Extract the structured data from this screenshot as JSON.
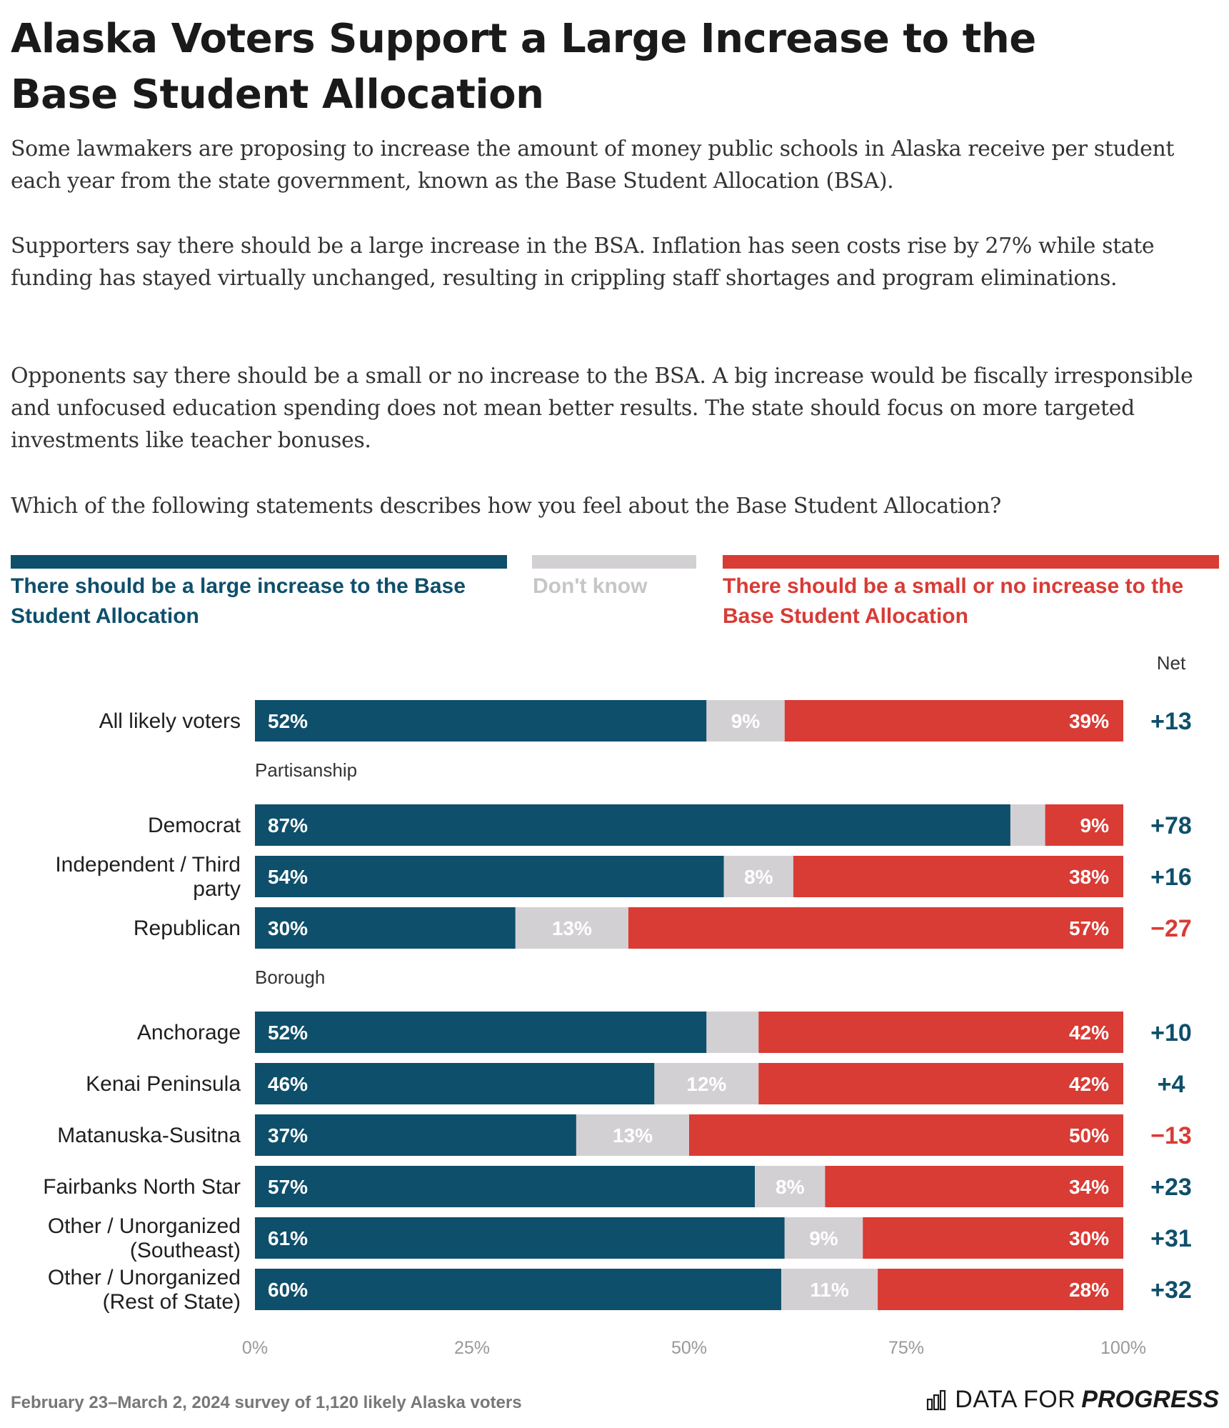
{
  "title": "Alaska Voters Support a Large Increase to the Base Student Allocation",
  "paragraphs": [
    "Some lawmakers are proposing to increase the amount of money public schools in Alaska receive per student each year from the state government, known as the Base Student Allocation (BSA).",
    "Supporters say there should be a large increase in the BSA. Inflation has seen costs rise by 27% while state funding has stayed virtually unchanged, resulting in crippling staff shortages and program eliminations.",
    "Opponents say there should be a small or no increase to the BSA. A big increase would be fiscally irresponsible and unfocused education spending does not mean better results. The state should focus on more targeted investments like teacher bonuses.",
    "Which of the following statements describes how you feel about the Base Student Allocation?"
  ],
  "legend": {
    "large": "There should be a large increase to the Base Student Allocation",
    "dontknow": "Don't know",
    "small": "There should be a small or no increase to the Base Student Allocation"
  },
  "colors": {
    "large": "#0e4f6b",
    "dontknow": "#d3d0d3",
    "small": "#d93b35",
    "dontknow_text": "#c8c5c8",
    "pos_net": "#0e4f6b",
    "neg_net": "#d93b35"
  },
  "chart_data": {
    "type": "bar",
    "stacked": true,
    "orientation": "horizontal",
    "net_header": "Net",
    "groups": [
      {
        "label": "",
        "rows": [
          {
            "label": "All likely voters",
            "large": 52,
            "dontknow": 9,
            "small": 39,
            "net": "+13",
            "labels": [
              "52%",
              "9%",
              "39%"
            ]
          }
        ]
      },
      {
        "label": "Partisanship",
        "rows": [
          {
            "label": "Democrat",
            "large": 87,
            "dontknow": 4,
            "small": 9,
            "net": "+78",
            "labels": [
              "87%",
              "",
              "9%"
            ]
          },
          {
            "label": "Independent / Third party",
            "large": 54,
            "dontknow": 8,
            "small": 38,
            "net": "+16",
            "labels": [
              "54%",
              "8%",
              "38%"
            ]
          },
          {
            "label": "Republican",
            "large": 30,
            "dontknow": 13,
            "small": 57,
            "net": "−27",
            "labels": [
              "30%",
              "13%",
              "57%"
            ]
          }
        ]
      },
      {
        "label": "Borough",
        "rows": [
          {
            "label": "Anchorage",
            "large": 52,
            "dontknow": 6,
            "small": 42,
            "net": "+10",
            "labels": [
              "52%",
              "",
              "42%"
            ]
          },
          {
            "label": "Kenai Peninsula",
            "large": 46,
            "dontknow": 12,
            "small": 42,
            "net": "+4",
            "labels": [
              "46%",
              "12%",
              "42%"
            ]
          },
          {
            "label": "Matanuska-Susitna",
            "large": 37,
            "dontknow": 13,
            "small": 50,
            "net": "−13",
            "labels": [
              "37%",
              "13%",
              "50%"
            ]
          },
          {
            "label": "Fairbanks North Star",
            "large": 57,
            "dontknow": 8,
            "small": 34,
            "net": "+23",
            "labels": [
              "57%",
              "8%",
              "34%"
            ]
          },
          {
            "label": "Other / Unorganized (Southeast)",
            "large": 61,
            "dontknow": 9,
            "small": 30,
            "net": "+31",
            "labels": [
              "61%",
              "9%",
              "30%"
            ]
          },
          {
            "label": "Other / Unorganized (Rest of State)",
            "large": 60,
            "dontknow": 11,
            "small": 28,
            "net": "+32",
            "labels": [
              "60%",
              "11%",
              "28%"
            ]
          }
        ]
      }
    ],
    "x_ticks": [
      "0%",
      "25%",
      "50%",
      "75%",
      "100%"
    ],
    "xlim": [
      0,
      100
    ]
  },
  "footer": {
    "note": "February 23–March 2, 2024 survey of 1,120 likely Alaska voters",
    "brand_a": "DATA FOR",
    "brand_b": "PROGRESS"
  }
}
